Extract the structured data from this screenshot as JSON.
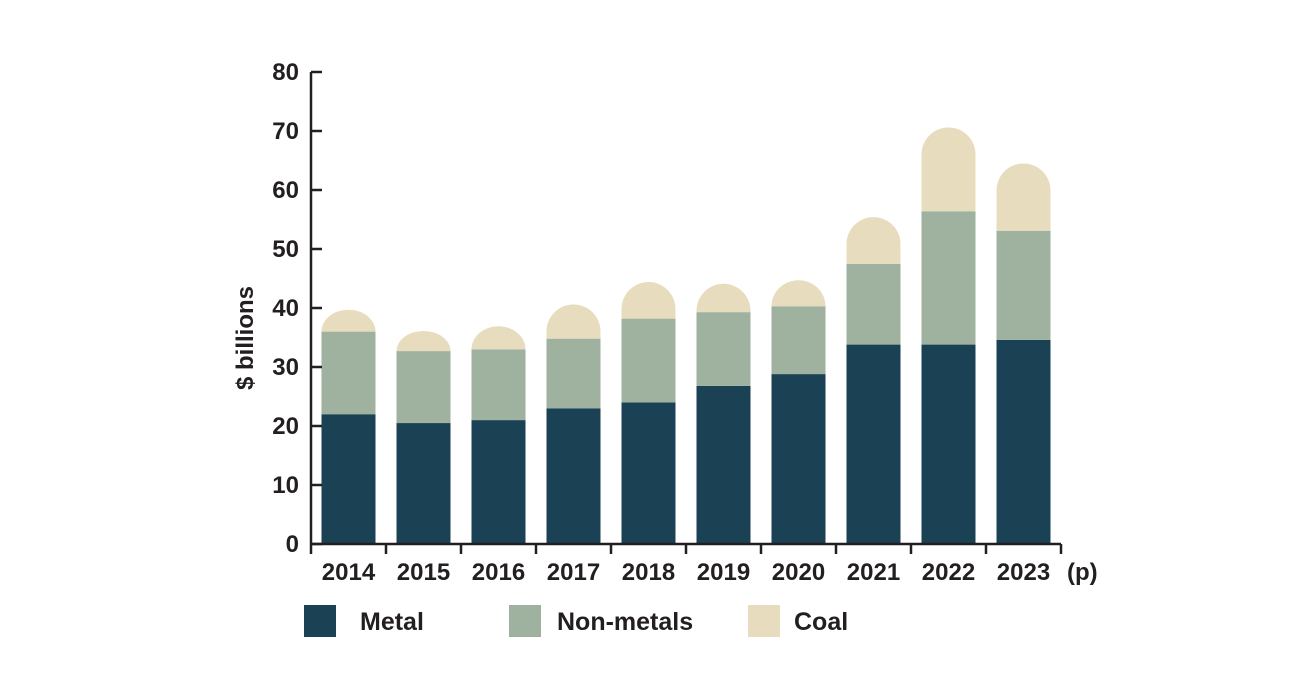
{
  "chart_data": {
    "type": "bar",
    "stacked": true,
    "categories": [
      "2014",
      "2015",
      "2016",
      "2017",
      "2018",
      "2019",
      "2020",
      "2021",
      "2022",
      "2023"
    ],
    "category_suffix": "(p)",
    "series": [
      {
        "name": "Metal",
        "color": "#1b4155",
        "values": [
          22.0,
          20.5,
          21.0,
          23.0,
          24.0,
          26.8,
          28.8,
          33.8,
          33.8,
          34.6
        ]
      },
      {
        "name": "Non-metals",
        "color": "#9eb29f",
        "values": [
          14.0,
          12.2,
          12.0,
          11.8,
          14.2,
          12.5,
          11.5,
          13.7,
          22.6,
          18.5
        ]
      },
      {
        "name": "Coal",
        "color": "#e7dcbd",
        "values": [
          3.7,
          3.4,
          3.9,
          5.8,
          6.2,
          4.8,
          4.4,
          7.9,
          14.2,
          11.4
        ]
      }
    ],
    "ylabel": "$ billions",
    "xlabel": "",
    "ylim": [
      0,
      80
    ],
    "yticks": [
      0,
      10,
      20,
      30,
      40,
      50,
      60,
      70,
      80
    ],
    "legend": "bottom",
    "grid": false
  }
}
